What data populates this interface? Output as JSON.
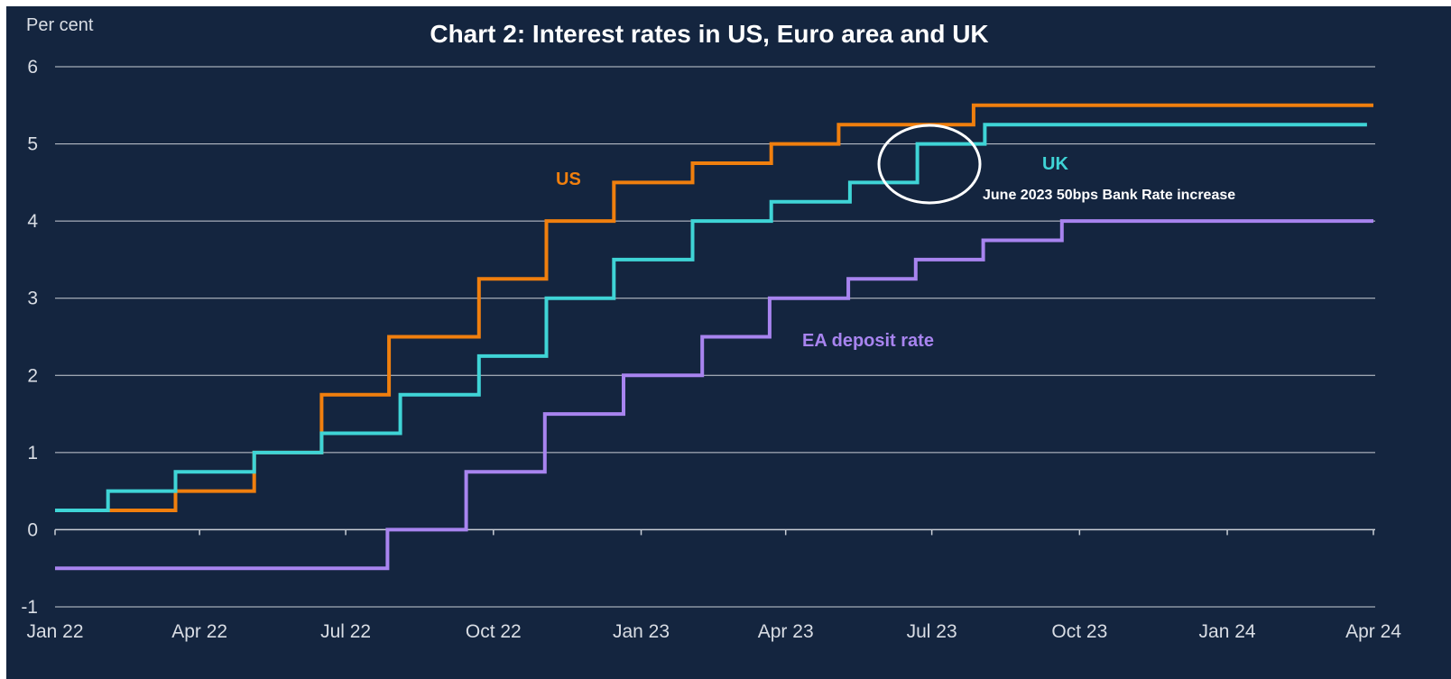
{
  "chart_data": {
    "type": "line",
    "step": true,
    "title": "Chart 2: Interest rates in US, Euro area and UK",
    "ylabel": "Per cent",
    "ylim": [
      -1,
      6
    ],
    "yticks": [
      "6",
      "5",
      "4",
      "3",
      "2",
      "1",
      "0",
      "-1"
    ],
    "xlim": [
      "2022-01-01",
      "2024-04-01"
    ],
    "xtick_labels": [
      "Jan 22",
      "Apr 22",
      "Jul 22",
      "Oct 22",
      "Jan 23",
      "Apr 23",
      "Jul 23",
      "Oct 23",
      "Jan 24",
      "Apr 24"
    ],
    "xtick_dates": [
      "2022-01-01",
      "2022-04-01",
      "2022-07-01",
      "2022-10-01",
      "2023-01-01",
      "2023-04-01",
      "2023-07-01",
      "2023-10-01",
      "2024-01-01",
      "2024-04-01"
    ],
    "grid": true,
    "series": [
      {
        "name": "US",
        "color": "#f07f0e",
        "points": [
          [
            "2022-01-01",
            0.25
          ],
          [
            "2022-03-17",
            0.5
          ],
          [
            "2022-05-05",
            1.0
          ],
          [
            "2022-06-16",
            1.75
          ],
          [
            "2022-07-28",
            2.5
          ],
          [
            "2022-09-22",
            3.25
          ],
          [
            "2022-11-03",
            4.0
          ],
          [
            "2022-12-15",
            4.5
          ],
          [
            "2023-02-02",
            4.75
          ],
          [
            "2023-03-23",
            5.0
          ],
          [
            "2023-05-04",
            5.25
          ],
          [
            "2023-07-27",
            5.5
          ],
          [
            "2024-04-01",
            5.5
          ]
        ]
      },
      {
        "name": "UK",
        "color": "#3fd4d6",
        "points": [
          [
            "2022-01-01",
            0.25
          ],
          [
            "2022-02-03",
            0.5
          ],
          [
            "2022-03-17",
            0.75
          ],
          [
            "2022-05-05",
            1.0
          ],
          [
            "2022-06-16",
            1.25
          ],
          [
            "2022-08-04",
            1.75
          ],
          [
            "2022-09-22",
            2.25
          ],
          [
            "2022-11-03",
            3.0
          ],
          [
            "2022-12-15",
            3.5
          ],
          [
            "2023-02-02",
            4.0
          ],
          [
            "2023-03-23",
            4.25
          ],
          [
            "2023-05-11",
            4.5
          ],
          [
            "2023-06-22",
            5.0
          ],
          [
            "2023-08-03",
            5.25
          ],
          [
            "2024-03-28",
            5.25
          ]
        ]
      },
      {
        "name": "EA deposit rate",
        "color": "#a884ef",
        "points": [
          [
            "2022-01-01",
            -0.5
          ],
          [
            "2022-07-27",
            0.0
          ],
          [
            "2022-09-14",
            0.75
          ],
          [
            "2022-11-02",
            1.5
          ],
          [
            "2022-12-21",
            2.0
          ],
          [
            "2023-02-08",
            2.5
          ],
          [
            "2023-03-22",
            3.0
          ],
          [
            "2023-05-10",
            3.25
          ],
          [
            "2023-06-21",
            3.5
          ],
          [
            "2023-08-02",
            3.75
          ],
          [
            "2023-09-20",
            4.0
          ],
          [
            "2024-04-01",
            4.0
          ]
        ]
      }
    ],
    "annotations": {
      "us_label": "US",
      "uk_label": "UK",
      "ea_label": "EA deposit rate",
      "note": "June 2023 50bps Bank Rate increase"
    },
    "colors": {
      "background": "#14253f",
      "grid": "#c9ced6",
      "axis": "#c9ced6",
      "text": "#ffffff",
      "tick_text": "#d9dde4",
      "highlight_circle": "#ffffff"
    }
  }
}
